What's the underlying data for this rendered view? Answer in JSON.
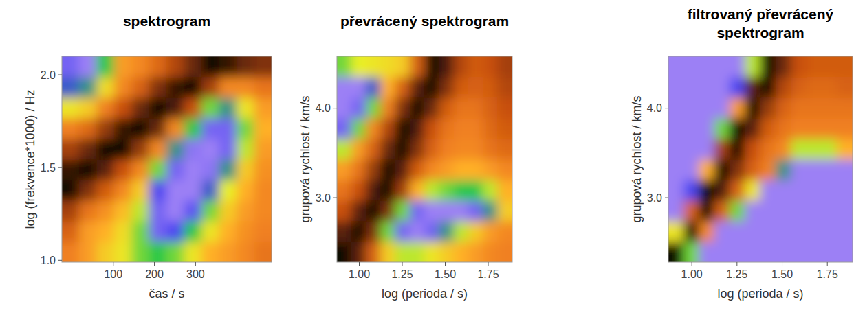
{
  "chart_data": [
    {
      "type": "heatmap",
      "title": "spektrogram",
      "x_label": "čas / s",
      "y_label": "log (frekvence*1000) / Hz",
      "xlim": [
        -25,
        485
      ],
      "ylim": [
        0.99,
        2.1
      ],
      "xticks": [
        100,
        200,
        300
      ],
      "yticks": [
        {
          "value": 1,
          "label": "1.0"
        },
        1.5,
        {
          "value": 2,
          "label": "2.0"
        }
      ],
      "zlim": [
        0,
        1
      ],
      "x": [
        -3.75,
        38.75,
        81.25,
        123.75,
        166.25,
        208.75,
        251.25,
        293.75,
        336.25,
        378.75,
        421.25,
        463.75
      ],
      "y": [
        1.0455,
        1.1565,
        1.2675,
        1.3785,
        1.4895,
        1.6005,
        1.7115,
        1.8225,
        1.9335,
        2.0445
      ],
      "z": [
        [
          0.62,
          0.55,
          0.45,
          0.4,
          0.3,
          0.25,
          0.3,
          0.4,
          0.5,
          0.55,
          0.6,
          0.65
        ],
        [
          0.7,
          0.55,
          0.5,
          0.42,
          0.3,
          0.05,
          0.1,
          0.25,
          0.4,
          0.5,
          0.58,
          0.62
        ],
        [
          0.8,
          0.65,
          0.58,
          0.48,
          0.35,
          0.05,
          0.0,
          0.08,
          0.3,
          0.45,
          0.55,
          0.6
        ],
        [
          1.0,
          0.85,
          0.72,
          0.6,
          0.45,
          0.1,
          0.0,
          0.0,
          0.15,
          0.38,
          0.5,
          0.6
        ],
        [
          0.95,
          1.0,
          0.9,
          0.75,
          0.6,
          0.3,
          0.05,
          0.0,
          0.02,
          0.2,
          0.45,
          0.58
        ],
        [
          0.8,
          0.88,
          1.0,
          1.0,
          0.82,
          0.6,
          0.2,
          0.02,
          0.0,
          0.05,
          0.35,
          0.55
        ],
        [
          0.62,
          0.68,
          0.82,
          0.95,
          1.0,
          0.88,
          0.6,
          0.25,
          0.05,
          0.05,
          0.3,
          0.5
        ],
        [
          0.4,
          0.45,
          0.62,
          0.75,
          0.88,
          1.0,
          0.92,
          0.75,
          0.3,
          0.2,
          0.4,
          0.55
        ],
        [
          0.15,
          0.2,
          0.42,
          0.6,
          0.7,
          0.85,
          0.95,
          1.0,
          0.8,
          0.6,
          0.6,
          0.65
        ],
        [
          0.05,
          0.0,
          0.25,
          0.55,
          0.6,
          0.68,
          0.78,
          0.88,
          1.0,
          0.95,
          0.88,
          0.85
        ]
      ]
    },
    {
      "type": "heatmap",
      "title": "převrácený spektrogram",
      "x_label": "log (perioda / s)",
      "y_label": "grupová rychlost / km/s",
      "xlim": [
        0.87,
        1.89
      ],
      "ylim": [
        2.28,
        4.58
      ],
      "xticks": [
        {
          "value": 1,
          "label": "1.00"
        },
        1.25,
        {
          "value": 1.5,
          "label": "1.50"
        },
        1.75
      ],
      "yticks": [
        {
          "value": 3,
          "label": "3.0"
        },
        {
          "value": 4,
          "label": "4.0"
        }
      ],
      "zlim": [
        0,
        1
      ],
      "x": [
        0.9125,
        0.9975,
        1.0825,
        1.1675,
        1.2525,
        1.3375,
        1.4225,
        1.5075,
        1.5925,
        1.6775,
        1.7625,
        1.8475
      ],
      "y": [
        2.395,
        2.625,
        2.855,
        3.085,
        3.315,
        3.545,
        3.775,
        4.005,
        4.235,
        4.465
      ],
      "z": [
        [
          1.0,
          0.9,
          0.7,
          0.45,
          0.35,
          0.35,
          0.4,
          0.45,
          0.5,
          0.55,
          0.6,
          0.62
        ],
        [
          0.9,
          1.0,
          0.85,
          0.3,
          0.05,
          0.0,
          0.05,
          0.2,
          0.35,
          0.45,
          0.55,
          0.6
        ],
        [
          0.75,
          0.9,
          1.0,
          0.85,
          0.3,
          0.05,
          0.0,
          0.0,
          0.0,
          0.05,
          0.2,
          0.45
        ],
        [
          0.65,
          0.75,
          0.92,
          1.0,
          0.8,
          0.5,
          0.35,
          0.3,
          0.25,
          0.25,
          0.35,
          0.5
        ],
        [
          0.55,
          0.65,
          0.82,
          1.0,
          0.9,
          0.72,
          0.6,
          0.55,
          0.5,
          0.5,
          0.55,
          0.6
        ],
        [
          0.35,
          0.55,
          0.7,
          0.88,
          1.0,
          0.85,
          0.7,
          0.62,
          0.6,
          0.6,
          0.65,
          0.68
        ],
        [
          0.05,
          0.3,
          0.6,
          0.78,
          1.0,
          0.92,
          0.75,
          0.65,
          0.62,
          0.62,
          0.68,
          0.72
        ],
        [
          0.0,
          0.05,
          0.3,
          0.62,
          0.85,
          1.0,
          0.88,
          0.72,
          0.65,
          0.65,
          0.7,
          0.75
        ],
        [
          0.0,
          0.0,
          0.15,
          0.5,
          0.7,
          0.9,
          1.0,
          0.85,
          0.72,
          0.7,
          0.72,
          0.78
        ],
        [
          0.3,
          0.38,
          0.4,
          0.42,
          0.45,
          0.7,
          1.0,
          0.92,
          0.78,
          0.72,
          0.75,
          0.8
        ]
      ]
    },
    {
      "type": "heatmap",
      "title": "filtrovaný převrácený spektrogram",
      "x_label": "log (perioda / s)",
      "y_label": "grupová rychlost / km/s",
      "xlim": [
        0.87,
        1.89
      ],
      "ylim": [
        2.28,
        4.58
      ],
      "xticks": [
        {
          "value": 1,
          "label": "1.00"
        },
        1.25,
        {
          "value": 1.5,
          "label": "1.50"
        },
        1.75
      ],
      "yticks": [
        {
          "value": 3,
          "label": "3.0"
        },
        {
          "value": 4,
          "label": "4.0"
        }
      ],
      "zlim": [
        0,
        1
      ],
      "x": [
        0.9125,
        0.9975,
        1.0825,
        1.1675,
        1.2525,
        1.3375,
        1.4225,
        1.5075,
        1.5925,
        1.6775,
        1.7625,
        1.8475
      ],
      "y": [
        2.395,
        2.625,
        2.855,
        3.085,
        3.315,
        3.545,
        3.775,
        4.005,
        4.235,
        4.465
      ],
      "z": [
        [
          1.0,
          0.3,
          0,
          0,
          0,
          0,
          0,
          0,
          0,
          0,
          0,
          0
        ],
        [
          0.4,
          1.0,
          0.6,
          0,
          0,
          0,
          0,
          0,
          0,
          0,
          0,
          0
        ],
        [
          0,
          0.7,
          1.0,
          0.7,
          0.3,
          0,
          0,
          0,
          0,
          0,
          0,
          0
        ],
        [
          0,
          0.1,
          1.0,
          0.92,
          0.7,
          0.4,
          0,
          0,
          0,
          0,
          0,
          0
        ],
        [
          0,
          0,
          0.5,
          1.0,
          0.85,
          0.7,
          0.62,
          0.2,
          0,
          0,
          0,
          0
        ],
        [
          0,
          0,
          0,
          0.8,
          1.0,
          0.75,
          0.65,
          0.6,
          0.35,
          0.35,
          0.35,
          0.5
        ],
        [
          0,
          0,
          0,
          0.3,
          1.0,
          0.9,
          0.72,
          0.65,
          0.62,
          0.62,
          0.62,
          0.62
        ],
        [
          0,
          0,
          0,
          0,
          0.55,
          1.0,
          0.82,
          0.7,
          0.65,
          0.65,
          0.65,
          0.65
        ],
        [
          0,
          0,
          0,
          0,
          0.1,
          0.9,
          1.0,
          0.78,
          0.7,
          0.68,
          0.68,
          0.7
        ],
        [
          0,
          0,
          0,
          0,
          0,
          0.35,
          1.0,
          0.88,
          0.75,
          0.72,
          0.72,
          0.72
        ]
      ]
    }
  ]
}
